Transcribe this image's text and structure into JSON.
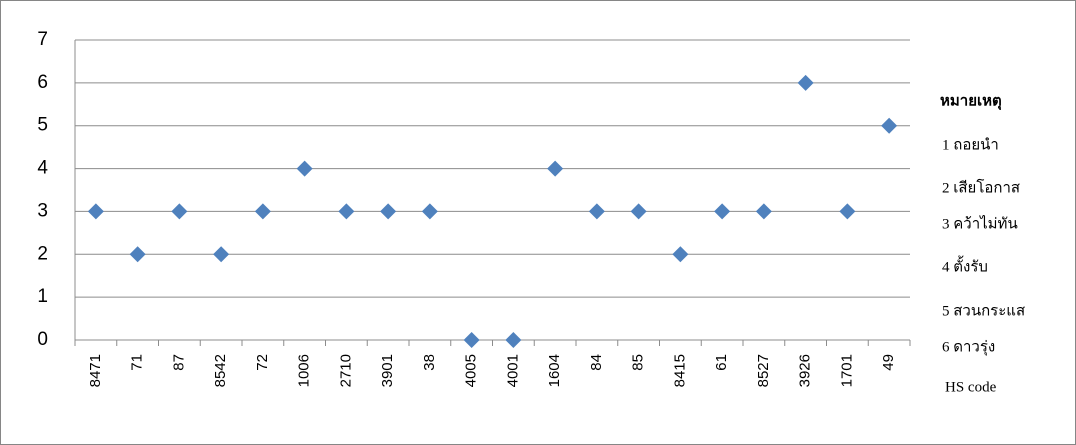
{
  "chart_data": {
    "type": "scatter",
    "categories": [
      "8471",
      "71",
      "87",
      "8542",
      "72",
      "1006",
      "2710",
      "3901",
      "38",
      "4005",
      "4001",
      "1604",
      "84",
      "85",
      "8415",
      "61",
      "8527",
      "3926",
      "1701",
      "49"
    ],
    "values": [
      3,
      2,
      3,
      2,
      3,
      4,
      3,
      3,
      3,
      0,
      0,
      4,
      3,
      3,
      2,
      3,
      3,
      6,
      3,
      5
    ],
    "color": "#4f81bd",
    "ylim": [
      0,
      7
    ],
    "yticks": [
      0,
      1,
      2,
      3,
      4,
      5,
      6,
      7
    ],
    "grid": true,
    "x_label": "HS code",
    "notes": {
      "title": "หมายเหตุ",
      "items": [
        "1 ถอยนำ",
        "2 เสียโอกาส",
        "3 คว้าไม่ทัน",
        "4 ตั้งรับ",
        "5 สวนกระแส",
        "6 ดาวรุ่ง"
      ]
    }
  }
}
